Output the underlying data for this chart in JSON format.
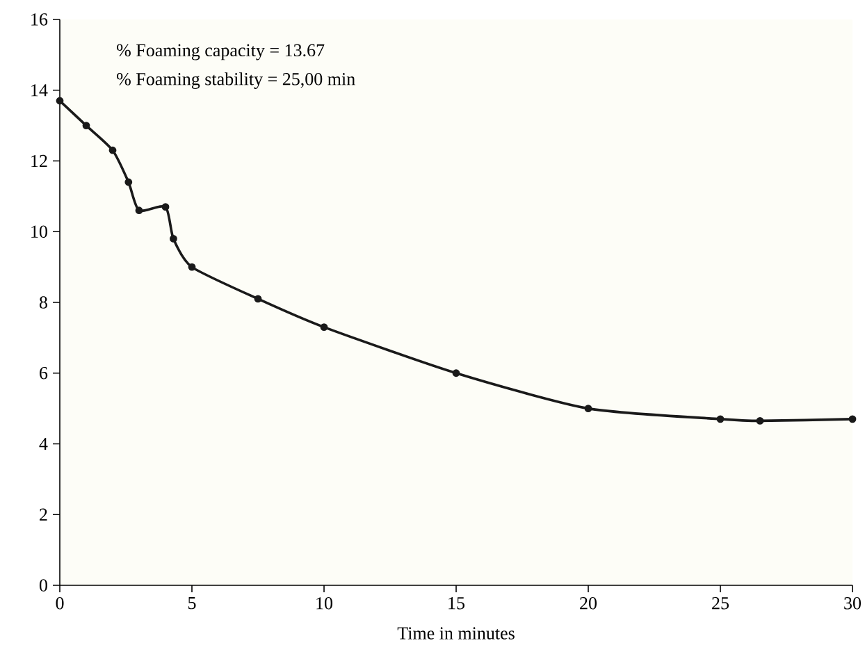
{
  "chart_data": {
    "type": "line",
    "xlabel": "Time in minutes",
    "annotations": [
      "% Foaming capacity = 13.67",
      "% Foaming stability = 25,00 min"
    ],
    "x": [
      0,
      1,
      2,
      2.6,
      3,
      4,
      4.3,
      5,
      7.5,
      10,
      15,
      20,
      25,
      26.5,
      30
    ],
    "series": [
      {
        "color": "#1a1a1a",
        "values": [
          13.7,
          13.0,
          12.3,
          11.4,
          10.6,
          10.7,
          9.8,
          9.0,
          8.1,
          7.3,
          6.0,
          5.0,
          4.7,
          4.65,
          4.7
        ]
      }
    ],
    "xlim": [
      0,
      30
    ],
    "ylim": [
      0,
      16
    ],
    "xticks": [
      0,
      5,
      10,
      15,
      20,
      25,
      30
    ],
    "yticks": [
      0,
      2,
      4,
      6,
      8,
      10,
      12,
      14,
      16
    ],
    "grid": false,
    "marker": "circle",
    "line_style": "solid"
  }
}
